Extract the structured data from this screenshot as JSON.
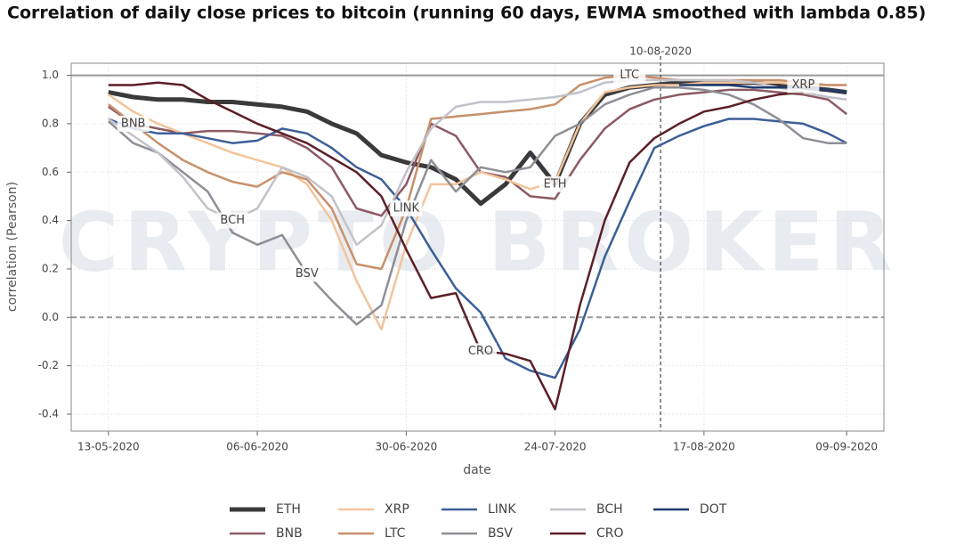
{
  "chart_data": {
    "type": "line",
    "title": "Correlation of daily close prices to bitcoin (running 60 days, EWMA smoothed with lambda 0.85)",
    "x_label": "date",
    "y_label": "correlation (Pearson)",
    "watermark": "CRYPTO BROKER",
    "vline": "10-08-2020",
    "hlines": [
      0,
      1
    ],
    "x": [
      "13-05-2020",
      "17-05-2020",
      "21-05-2020",
      "25-05-2020",
      "29-05-2020",
      "02-06-2020",
      "06-06-2020",
      "10-06-2020",
      "14-06-2020",
      "18-06-2020",
      "22-06-2020",
      "26-06-2020",
      "30-06-2020",
      "04-07-2020",
      "08-07-2020",
      "12-07-2020",
      "16-07-2020",
      "20-07-2020",
      "24-07-2020",
      "28-07-2020",
      "01-08-2020",
      "05-08-2020",
      "09-08-2020",
      "13-08-2020",
      "17-08-2020",
      "21-08-2020",
      "25-08-2020",
      "29-08-2020",
      "02-09-2020",
      "06-09-2020",
      "09-09-2020"
    ],
    "xlim": [
      "07-05-2020",
      "15-09-2020"
    ],
    "xticks": [
      "13-05-2020",
      "06-06-2020",
      "30-06-2020",
      "24-07-2020",
      "17-08-2020",
      "09-09-2020"
    ],
    "ylim": [
      -0.47,
      1.05
    ],
    "yticks": [
      -0.4,
      -0.2,
      {
        "value": 0,
        "label": "0.0"
      },
      0.2,
      0.4,
      0.6,
      0.8,
      {
        "value": 1,
        "label": "1.0"
      }
    ],
    "grid": true,
    "series": [
      {
        "name": "ETH",
        "color": "#3a3a3a",
        "values": [
          0.93,
          0.91,
          0.9,
          0.9,
          0.89,
          0.89,
          0.88,
          0.87,
          0.85,
          0.8,
          0.76,
          0.67,
          0.64,
          0.62,
          0.57,
          0.47,
          0.55,
          0.68,
          0.55,
          0.8,
          0.92,
          0.95,
          0.96,
          0.97,
          0.97,
          0.97,
          0.97,
          0.96,
          0.95,
          0.94,
          0.93
        ]
      },
      {
        "name": "BNB",
        "color": "#8c5a63",
        "values": [
          0.87,
          0.8,
          0.78,
          0.76,
          0.77,
          0.77,
          0.76,
          0.75,
          0.7,
          0.62,
          0.45,
          0.42,
          0.55,
          0.8,
          0.75,
          0.6,
          0.58,
          0.5,
          0.49,
          0.65,
          0.78,
          0.86,
          0.9,
          0.92,
          0.93,
          0.94,
          0.94,
          0.93,
          0.92,
          0.9,
          0.84
        ]
      },
      {
        "name": "XRP",
        "color": "#f2c49b",
        "values": [
          0.92,
          0.85,
          0.8,
          0.76,
          0.72,
          0.68,
          0.65,
          0.62,
          0.55,
          0.4,
          0.15,
          -0.05,
          0.3,
          0.55,
          0.55,
          0.6,
          0.57,
          0.53,
          0.56,
          0.8,
          0.93,
          0.95,
          0.96,
          0.96,
          0.97,
          0.97,
          0.97,
          0.97,
          0.96,
          0.96,
          0.96
        ]
      },
      {
        "name": "LTC",
        "color": "#c8906a",
        "values": [
          0.88,
          0.8,
          0.72,
          0.65,
          0.6,
          0.56,
          0.54,
          0.6,
          0.57,
          0.45,
          0.22,
          0.2,
          0.45,
          0.82,
          0.83,
          0.84,
          0.85,
          0.86,
          0.88,
          0.96,
          0.99,
          1.0,
          0.99,
          0.98,
          0.98,
          0.98,
          0.98,
          0.98,
          0.97,
          0.96,
          0.96
        ]
      },
      {
        "name": "LINK",
        "color": "#3b5f97",
        "values": [
          0.82,
          0.78,
          0.76,
          0.76,
          0.74,
          0.72,
          0.73,
          0.78,
          0.76,
          0.7,
          0.62,
          0.57,
          0.45,
          0.28,
          0.12,
          0.02,
          -0.17,
          -0.22,
          -0.25,
          -0.05,
          0.25,
          0.48,
          0.7,
          0.75,
          0.79,
          0.82,
          0.82,
          0.81,
          0.8,
          0.76,
          0.72
        ]
      },
      {
        "name": "BSV",
        "color": "#8e8e96",
        "values": [
          0.81,
          0.72,
          0.68,
          0.6,
          0.52,
          0.35,
          0.3,
          0.34,
          0.18,
          0.07,
          -0.03,
          0.05,
          0.4,
          0.65,
          0.52,
          0.62,
          0.6,
          0.62,
          0.75,
          0.8,
          0.88,
          0.92,
          0.95,
          0.95,
          0.94,
          0.92,
          0.88,
          0.82,
          0.74,
          0.72,
          0.72
        ]
      },
      {
        "name": "BCH",
        "color": "#c2c2ca",
        "values": [
          0.82,
          0.75,
          0.68,
          0.58,
          0.45,
          0.4,
          0.45,
          0.62,
          0.58,
          0.5,
          0.3,
          0.38,
          0.6,
          0.78,
          0.87,
          0.89,
          0.89,
          0.9,
          0.91,
          0.93,
          0.97,
          0.98,
          0.98,
          0.98,
          0.98,
          0.98,
          0.97,
          0.95,
          0.93,
          0.91,
          0.9
        ]
      },
      {
        "name": "CRO",
        "color": "#5c1f27",
        "values": [
          0.96,
          0.96,
          0.97,
          0.96,
          0.9,
          0.85,
          0.8,
          0.76,
          0.72,
          0.66,
          0.6,
          0.5,
          0.28,
          0.08,
          0.1,
          -0.14,
          -0.15,
          -0.18,
          -0.38,
          0.05,
          0.4,
          0.64,
          0.74,
          0.8,
          0.85,
          0.87,
          0.9,
          0.92,
          0.93,
          null,
          null
        ]
      },
      {
        "name": "DOT",
        "color": "#1f3a6e",
        "values": [
          null,
          null,
          null,
          null,
          null,
          null,
          null,
          null,
          null,
          null,
          null,
          null,
          null,
          null,
          null,
          null,
          null,
          null,
          null,
          null,
          null,
          null,
          null,
          0.96,
          0.96,
          0.96,
          0.95,
          0.95,
          0.95,
          0.94,
          0.93
        ]
      }
    ]
  }
}
